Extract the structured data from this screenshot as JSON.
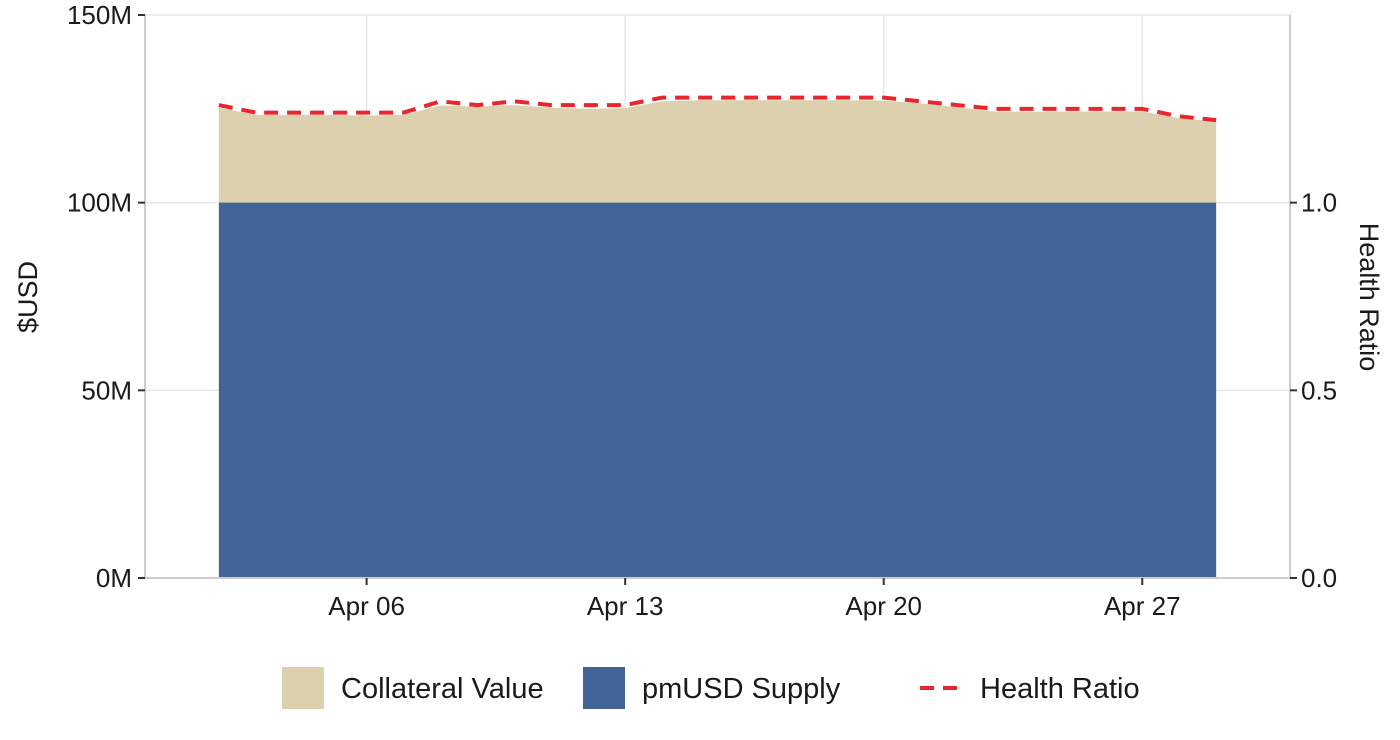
{
  "chart_data": {
    "type": "area",
    "x": [
      "2025-04-02",
      "2025-04-03",
      "2025-04-04",
      "2025-04-05",
      "2025-04-06",
      "2025-04-07",
      "2025-04-08",
      "2025-04-09",
      "2025-04-10",
      "2025-04-11",
      "2025-04-12",
      "2025-04-13",
      "2025-04-14",
      "2025-04-15",
      "2025-04-16",
      "2025-04-17",
      "2025-04-18",
      "2025-04-19",
      "2025-04-20",
      "2025-04-21",
      "2025-04-22",
      "2025-04-23",
      "2025-04-24",
      "2025-04-25",
      "2025-04-26",
      "2025-04-27",
      "2025-04-28",
      "2025-04-29"
    ],
    "series": [
      {
        "name": "Collateral Value",
        "axis": "left",
        "style": "area",
        "color": "#DDD0AE",
        "values": [
          125.3,
          123.4,
          123.4,
          123.4,
          123.2,
          123.4,
          125.9,
          125.6,
          126.0,
          125.3,
          125.0,
          125.2,
          127.0,
          127.3,
          127.3,
          127.3,
          127.3,
          127.3,
          127.2,
          126.5,
          125.4,
          124.3,
          124.2,
          124.3,
          124.3,
          124.3,
          122.5,
          121.6
        ]
      },
      {
        "name": "pmUSD Supply",
        "axis": "left",
        "style": "area",
        "color": "#426498",
        "values": [
          100,
          100,
          100,
          100,
          100,
          100,
          100,
          100,
          100,
          100,
          100,
          100,
          100,
          100,
          100,
          100,
          100,
          100,
          100,
          100,
          100,
          100,
          100,
          100,
          100,
          100,
          100,
          100
        ]
      },
      {
        "name": "Health Ratio",
        "axis": "right",
        "style": "dashed-line",
        "color": "#E8262B",
        "values": [
          1.26,
          1.24,
          1.24,
          1.24,
          1.24,
          1.24,
          1.27,
          1.26,
          1.27,
          1.26,
          1.26,
          1.26,
          1.28,
          1.28,
          1.28,
          1.28,
          1.28,
          1.28,
          1.28,
          1.27,
          1.26,
          1.25,
          1.25,
          1.25,
          1.25,
          1.25,
          1.23,
          1.22
        ]
      }
    ],
    "ylabel": "$USD",
    "ylabel_right": "Health Ratio",
    "ylim": [
      0,
      150
    ],
    "ylim_right": [
      0,
      1.5
    ],
    "xlim": [
      "2025-03-31",
      "2025-05-01"
    ],
    "y_ticks": [
      0,
      50,
      100,
      150
    ],
    "y_tick_labels": [
      "0M",
      "50M",
      "100M",
      "150M"
    ],
    "y_ticks_right": [
      0.0,
      0.5,
      1.0
    ],
    "y_tick_labels_right": [
      "0.0",
      "0.5",
      "1.0"
    ],
    "x_ticks": [
      "2025-04-06",
      "2025-04-13",
      "2025-04-20",
      "2025-04-27"
    ],
    "x_tick_labels": [
      "Apr 06",
      "Apr 13",
      "Apr 20",
      "Apr 27"
    ],
    "grid": true,
    "legend_position": "bottom"
  }
}
